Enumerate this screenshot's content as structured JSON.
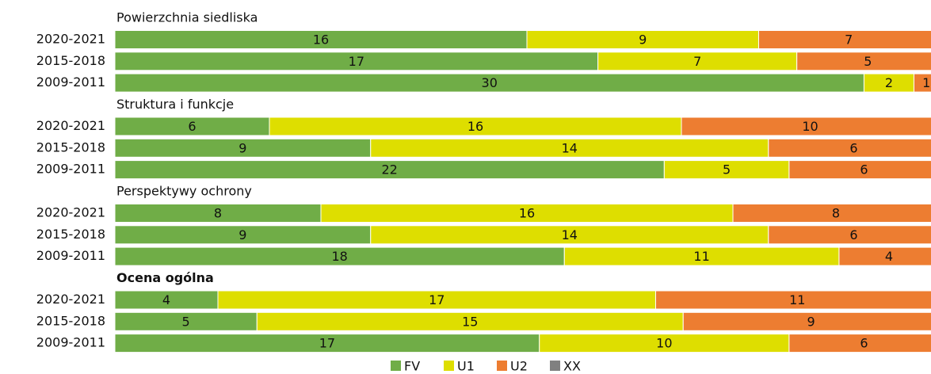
{
  "chart_data": {
    "type": "bar",
    "stacked": true,
    "normalized": true,
    "series": [
      {
        "name": "FV",
        "color": "#70ad47"
      },
      {
        "name": "U1",
        "color": "#dede00"
      },
      {
        "name": "U2",
        "color": "#ed7d31"
      },
      {
        "name": "XX",
        "color": "#808080"
      }
    ],
    "groups": [
      {
        "title": "Powierzchnia siedliska",
        "title_bold": false,
        "categories": [
          "2020-2021",
          "2015-2018",
          "2009-2011"
        ],
        "values": [
          [
            16,
            9,
            7,
            0
          ],
          [
            17,
            7,
            5,
            0
          ],
          [
            30,
            2,
            1,
            0
          ]
        ]
      },
      {
        "title": "Struktura i funkcje",
        "title_bold": false,
        "categories": [
          "2020-2021",
          "2015-2018",
          "2009-2011"
        ],
        "values": [
          [
            6,
            16,
            10,
            0
          ],
          [
            9,
            14,
            6,
            0
          ],
          [
            22,
            5,
            6,
            0
          ]
        ]
      },
      {
        "title": "Perspektywy ochrony",
        "title_bold": false,
        "categories": [
          "2020-2021",
          "2015-2018",
          "2009-2011"
        ],
        "values": [
          [
            8,
            16,
            8,
            0
          ],
          [
            9,
            14,
            6,
            0
          ],
          [
            18,
            11,
            4,
            0
          ]
        ]
      },
      {
        "title": "Ocena ogólna",
        "title_bold": true,
        "categories": [
          "2020-2021",
          "2015-2018",
          "2009-2011"
        ],
        "values": [
          [
            4,
            17,
            11,
            0
          ],
          [
            5,
            15,
            9,
            0
          ],
          [
            17,
            10,
            6,
            0
          ]
        ]
      }
    ]
  }
}
